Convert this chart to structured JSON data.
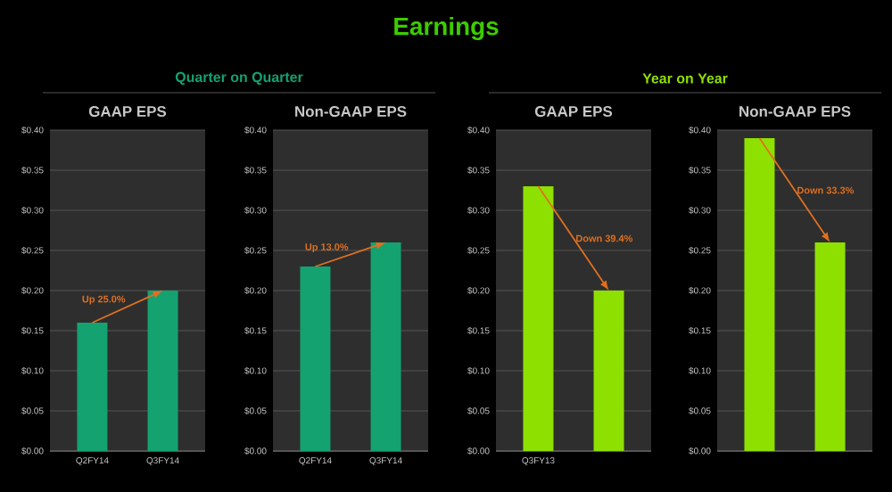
{
  "chart_data": [
    {
      "type": "other",
      "title": "Earnings",
      "annotations": [
        "Quarter on Quarter",
        "Year on Year"
      ]
    },
    {
      "type": "bar",
      "title": "GAAP EPS",
      "categories": [
        "Q2FY14",
        "Q3FY14"
      ],
      "values": [
        0.16,
        0.2
      ],
      "color": "#14a271",
      "ylim": [
        0,
        0.4
      ],
      "yticks": [
        {
          "value": 0,
          "label": "$0.00"
        },
        {
          "value": 0.05,
          "label": "$0.05"
        },
        {
          "value": 0.1,
          "label": "$0.10"
        },
        {
          "value": 0.15,
          "label": "$0.15"
        },
        {
          "value": 0.2,
          "label": "$0.20"
        },
        {
          "value": 0.25,
          "label": "$0.25"
        },
        {
          "value": 0.3,
          "label": "$0.30"
        },
        {
          "value": 0.35,
          "label": "$0.35"
        },
        {
          "value": 0.4,
          "label": "$0.40"
        }
      ],
      "grid": "y",
      "annotations": [
        "Up 25.0%"
      ]
    },
    {
      "type": "bar",
      "title": "Non-GAAP EPS",
      "categories": [
        "Q2FY14",
        "Q3FY14"
      ],
      "values": [
        0.23,
        0.26
      ],
      "color": "#14a271",
      "ylim": [
        0,
        0.4
      ],
      "yticks": [
        {
          "value": 0,
          "label": "$0.00"
        },
        {
          "value": 0.05,
          "label": "$0.05"
        },
        {
          "value": 0.1,
          "label": "$0.10"
        },
        {
          "value": 0.15,
          "label": "$0.15"
        },
        {
          "value": 0.2,
          "label": "$0.20"
        },
        {
          "value": 0.25,
          "label": "$0.25"
        },
        {
          "value": 0.3,
          "label": "$0.30"
        },
        {
          "value": 0.35,
          "label": "$0.35"
        },
        {
          "value": 0.4,
          "label": "$0.40"
        }
      ],
      "grid": "y",
      "annotations": [
        "Up 13.0%"
      ]
    },
    {
      "type": "bar",
      "title": "GAAP EPS",
      "categories": [
        "Q3FY13",
        null
      ],
      "values": [
        0.33,
        0.2
      ],
      "color": "#8ee000",
      "ylim": [
        0,
        0.4
      ],
      "yticks": [
        {
          "value": 0,
          "label": "$0.00"
        },
        {
          "value": 0.05,
          "label": "$0.05"
        },
        {
          "value": 0.1,
          "label": "$0.10"
        },
        {
          "value": 0.15,
          "label": "$0.15"
        },
        {
          "value": 0.2,
          "label": "$0.20"
        },
        {
          "value": 0.25,
          "label": "$0.25"
        },
        {
          "value": 0.3,
          "label": "$0.30"
        },
        {
          "value": 0.35,
          "label": "$0.35"
        },
        {
          "value": 0.4,
          "label": "$0.40"
        }
      ],
      "grid": "y",
      "annotations": [
        "Down 39.4%"
      ]
    },
    {
      "type": "bar",
      "title": "Non-GAAP EPS",
      "categories": [
        null,
        null
      ],
      "values": [
        0.39,
        0.26
      ],
      "color": "#8ee000",
      "ylim": [
        0,
        0.4
      ],
      "yticks": [
        {
          "value": 0,
          "label": "$0.00"
        },
        {
          "value": 0.05,
          "label": "$0.05"
        },
        {
          "value": 0.1,
          "label": "$0.10"
        },
        {
          "value": 0.15,
          "label": "$0.15"
        },
        {
          "value": 0.2,
          "label": "$0.20"
        },
        {
          "value": 0.25,
          "label": "$0.25"
        },
        {
          "value": 0.3,
          "label": "$0.30"
        },
        {
          "value": 0.35,
          "label": "$0.35"
        },
        {
          "value": 0.4,
          "label": "$0.40"
        }
      ],
      "grid": "y",
      "annotations": [
        "Down 33.3%"
      ]
    }
  ]
}
